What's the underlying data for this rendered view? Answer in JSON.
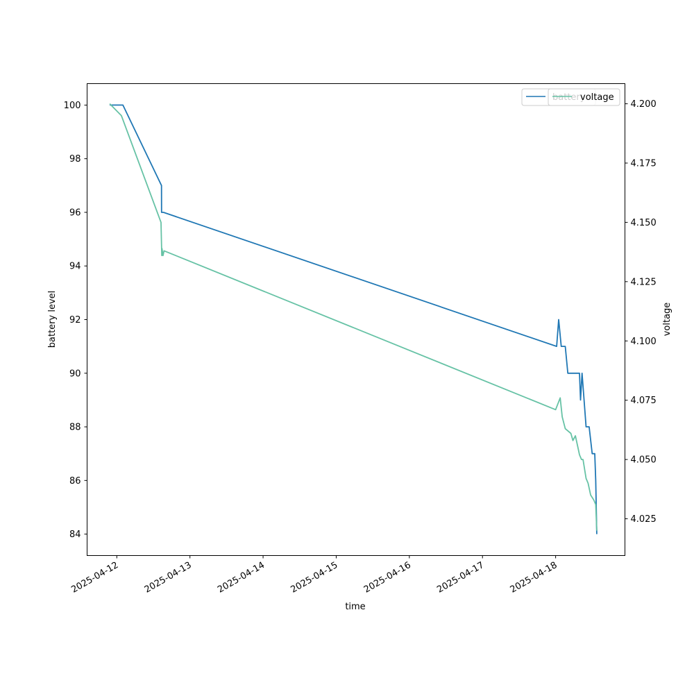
{
  "chart_data": {
    "type": "line",
    "title": "",
    "xlabel": "time",
    "ylabel": "battery level",
    "y2label": "voltage",
    "x_ticks": [
      "2025-04-12",
      "2025-04-13",
      "2025-04-14",
      "2025-04-15",
      "2025-04-16",
      "2025-04-17",
      "2025-04-18"
    ],
    "y_ticks": [
      "84",
      "86",
      "88",
      "90",
      "92",
      "94",
      "96",
      "98",
      "100"
    ],
    "y2_ticks": [
      "4.025",
      "4.050",
      "4.075",
      "4.100",
      "4.125",
      "4.150",
      "4.175",
      "4.200"
    ],
    "xlim": [
      "2025-04-11 14:15",
      "2025-04-18 22:45"
    ],
    "ylim": [
      83.2,
      100.8
    ],
    "y2lim": [
      4.0095,
      4.2085
    ],
    "grid": false,
    "legend_position": "top-right",
    "series": [
      {
        "name": "battery",
        "axis": "left",
        "color": "#1f77b4",
        "points": [
          [
            "2025-04-11 21:40",
            100
          ],
          [
            "2025-04-12 02:00",
            100
          ],
          [
            "2025-04-12 14:40",
            97
          ],
          [
            "2025-04-12 14:41",
            96
          ],
          [
            "2025-04-12 15:20",
            96
          ],
          [
            "2025-04-18 00:20",
            91
          ],
          [
            "2025-04-18 01:00",
            92
          ],
          [
            "2025-04-18 01:50",
            91
          ],
          [
            "2025-04-18 03:10",
            91
          ],
          [
            "2025-04-18 04:00",
            90
          ],
          [
            "2025-04-18 07:50",
            90
          ],
          [
            "2025-04-18 08:10",
            89
          ],
          [
            "2025-04-18 08:40",
            90
          ],
          [
            "2025-04-18 10:00",
            88
          ],
          [
            "2025-04-18 11:00",
            88
          ],
          [
            "2025-04-18 12:00",
            87
          ],
          [
            "2025-04-18 12:50",
            87
          ],
          [
            "2025-04-18 13:10",
            86
          ],
          [
            "2025-04-18 13:30",
            84
          ]
        ]
      },
      {
        "name": "voltage",
        "axis": "right",
        "color": "#66c2a5",
        "points": [
          [
            "2025-04-11 21:40",
            4.2
          ],
          [
            "2025-04-12 01:30",
            4.195
          ],
          [
            "2025-04-12 14:30",
            4.15
          ],
          [
            "2025-04-12 14:45",
            4.136
          ],
          [
            "2025-04-12 14:50",
            4.139
          ],
          [
            "2025-04-12 15:10",
            4.136
          ],
          [
            "2025-04-12 15:30",
            4.138
          ],
          [
            "2025-04-18 00:00",
            4.071
          ],
          [
            "2025-04-18 01:30",
            4.076
          ],
          [
            "2025-04-18 02:10",
            4.068
          ],
          [
            "2025-04-18 03:10",
            4.063
          ],
          [
            "2025-04-18 05:00",
            4.061
          ],
          [
            "2025-04-18 05:40",
            4.058
          ],
          [
            "2025-04-18 06:30",
            4.06
          ],
          [
            "2025-04-18 07:20",
            4.055
          ],
          [
            "2025-04-18 07:50",
            4.052
          ],
          [
            "2025-04-18 08:30",
            4.05
          ],
          [
            "2025-04-18 09:00",
            4.05
          ],
          [
            "2025-04-18 10:00",
            4.042
          ],
          [
            "2025-04-18 10:40",
            4.04
          ],
          [
            "2025-04-18 11:30",
            4.035
          ],
          [
            "2025-04-18 12:30",
            4.033
          ],
          [
            "2025-04-18 13:10",
            4.031
          ],
          [
            "2025-04-18 13:30",
            4.02
          ]
        ]
      }
    ]
  }
}
